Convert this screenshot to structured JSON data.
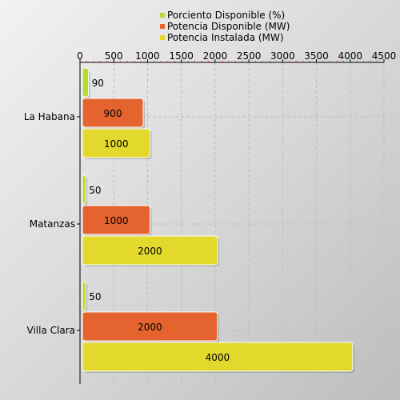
{
  "chart_data": {
    "type": "bar",
    "orientation": "horizontal",
    "categories": [
      "La Habana",
      "Matanzas",
      "Villa Clara"
    ],
    "series": [
      {
        "name": "Porciento Disponible (%)",
        "values": [
          90,
          50,
          50
        ],
        "color": "#b5d936"
      },
      {
        "name": "Potencia Disponible (MW)",
        "values": [
          900,
          1000,
          2000
        ],
        "color": "#e5632e"
      },
      {
        "name": "Potencia Instalada (MW)",
        "values": [
          1000,
          2000,
          4000
        ],
        "color": "#e3d92d"
      }
    ],
    "xlim": [
      0,
      4500
    ],
    "xticks": [
      0,
      500,
      1000,
      1500,
      2000,
      2500,
      3000,
      3500,
      4000,
      4500
    ],
    "axis_position": "top",
    "legend_position": "top-center",
    "grid": true,
    "data_labels": true
  }
}
